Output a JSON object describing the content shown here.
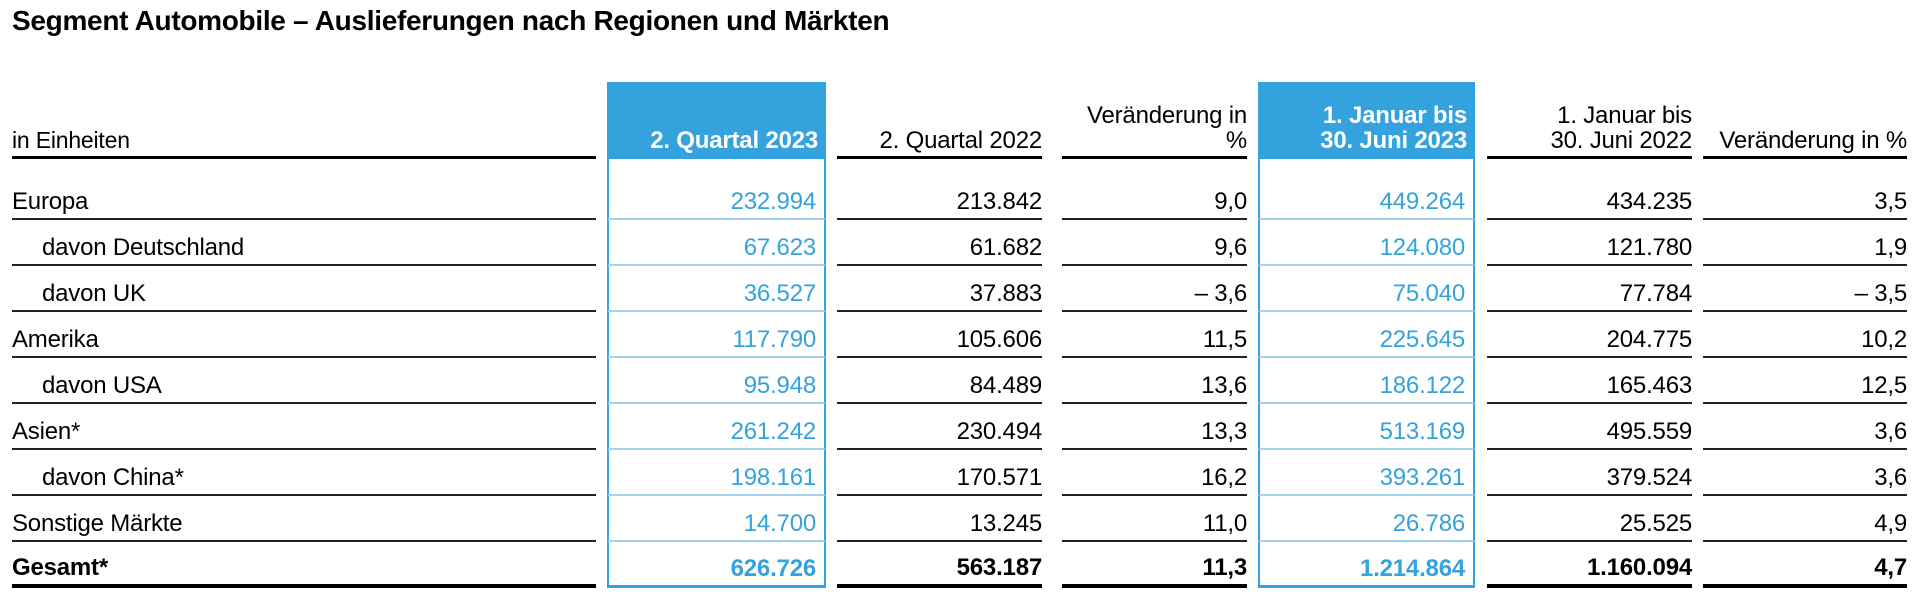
{
  "title": "Segment Automobile – Auslieferungen nach Regionen und Märkten",
  "colors": {
    "accent_blue": "#34A2DD",
    "light_blue_rule": "#A3D3ED",
    "dark_rule": "#222222",
    "text": "#000000"
  },
  "table": {
    "unit_label": "in Einheiten",
    "columns": [
      {
        "id": "q2_2023",
        "line1": "",
        "line2": "2. Quartal 2023",
        "highlight": true
      },
      {
        "id": "q2_2022",
        "line1": "",
        "line2": "2. Quartal 2022",
        "highlight": false
      },
      {
        "id": "change_quarter",
        "line1": "",
        "line2": "Veränderung in %",
        "highlight": false
      },
      {
        "id": "h1_2023",
        "line1": "1. Januar bis",
        "line2": "30. Juni 2023",
        "highlight": true
      },
      {
        "id": "h1_2022",
        "line1": "1. Januar bis",
        "line2": "30. Juni 2022",
        "highlight": false
      },
      {
        "id": "change_half",
        "line1": "",
        "line2": "Veränderung in %",
        "highlight": false
      }
    ],
    "rows": [
      {
        "label": "Europa",
        "indent": false,
        "bold": false,
        "values": [
          "232.994",
          "213.842",
          "9,0",
          "449.264",
          "434.235",
          "3,5"
        ]
      },
      {
        "label": "davon Deutschland",
        "indent": true,
        "bold": false,
        "values": [
          "67.623",
          "61.682",
          "9,6",
          "124.080",
          "121.780",
          "1,9"
        ]
      },
      {
        "label": "davon UK",
        "indent": true,
        "bold": false,
        "values": [
          "36.527",
          "37.883",
          "– 3,6",
          "75.040",
          "77.784",
          "– 3,5"
        ]
      },
      {
        "label": "Amerika",
        "indent": false,
        "bold": false,
        "values": [
          "117.790",
          "105.606",
          "11,5",
          "225.645",
          "204.775",
          "10,2"
        ]
      },
      {
        "label": "davon USA",
        "indent": true,
        "bold": false,
        "values": [
          "95.948",
          "84.489",
          "13,6",
          "186.122",
          "165.463",
          "12,5"
        ]
      },
      {
        "label": "Asien*",
        "indent": false,
        "bold": false,
        "values": [
          "261.242",
          "230.494",
          "13,3",
          "513.169",
          "495.559",
          "3,6"
        ]
      },
      {
        "label": "davon China*",
        "indent": true,
        "bold": false,
        "values": [
          "198.161",
          "170.571",
          "16,2",
          "393.261",
          "379.524",
          "3,6"
        ]
      },
      {
        "label": "Sonstige Märkte",
        "indent": false,
        "bold": false,
        "values": [
          "14.700",
          "13.245",
          "11,0",
          "26.786",
          "25.525",
          "4,9"
        ]
      },
      {
        "label": "Gesamt*",
        "indent": false,
        "bold": true,
        "values": [
          "626.726",
          "563.187",
          "11,3",
          "1.214.864",
          "1.160.094",
          "4,7"
        ]
      }
    ]
  }
}
